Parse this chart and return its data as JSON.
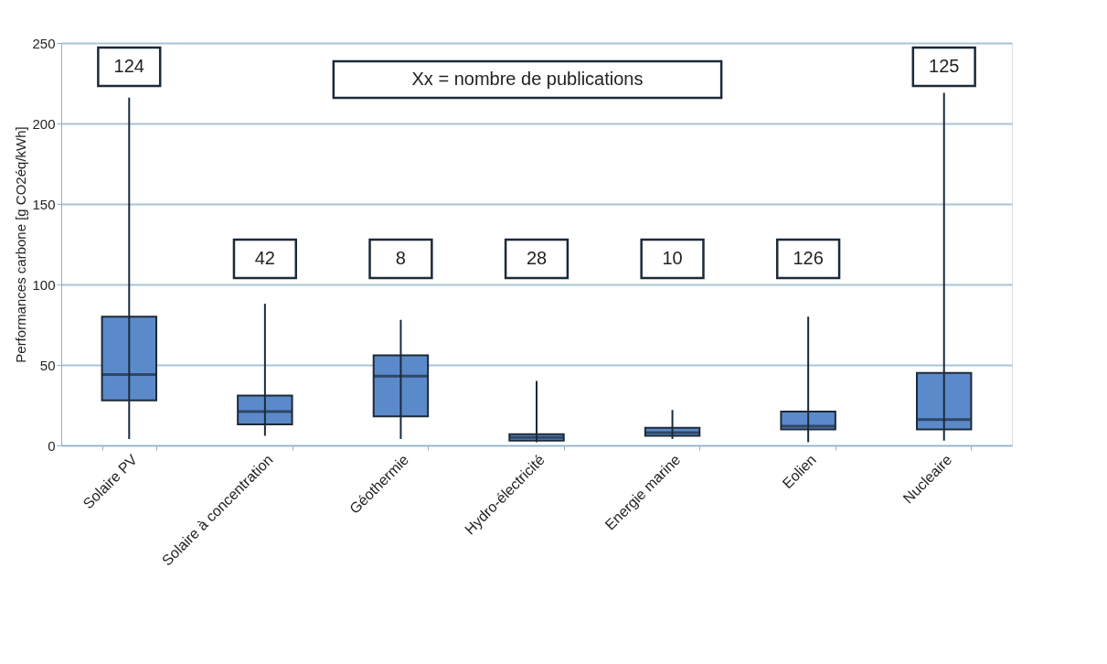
{
  "chart_data": {
    "type": "box",
    "ylabel": "Performances carbone  [g CO2éq/kWh]",
    "categories": [
      "Solaire PV",
      "Solaire à concentration",
      "Géothermie",
      "Hydro-électricité",
      "Energie marine",
      "Eolien",
      "Nucleaire"
    ],
    "boxes": [
      {
        "low": 4,
        "q1": 28,
        "median": 44,
        "q3": 80,
        "high": 216
      },
      {
        "low": 6,
        "q1": 13,
        "median": 21,
        "q3": 31,
        "high": 88
      },
      {
        "low": 4,
        "q1": 18,
        "median": 43,
        "q3": 56,
        "high": 78
      },
      {
        "low": 2,
        "q1": 3,
        "median": 5,
        "q3": 7,
        "high": 40
      },
      {
        "low": 4,
        "q1": 6,
        "median": 8,
        "q3": 11,
        "high": 22
      },
      {
        "low": 2,
        "q1": 10,
        "median": 12,
        "q3": 21,
        "high": 80
      },
      {
        "low": 3,
        "q1": 10,
        "median": 16,
        "q3": 45,
        "high": 219
      }
    ],
    "color": "#5b8acb",
    "ylim": [
      0,
      250
    ],
    "yticks": [
      0,
      50,
      100,
      150,
      200,
      250
    ],
    "grid": "y",
    "annotations": [
      "124",
      "42",
      "8",
      "28",
      "10",
      "126",
      "125",
      "Xx = nombre de publications"
    ]
  }
}
